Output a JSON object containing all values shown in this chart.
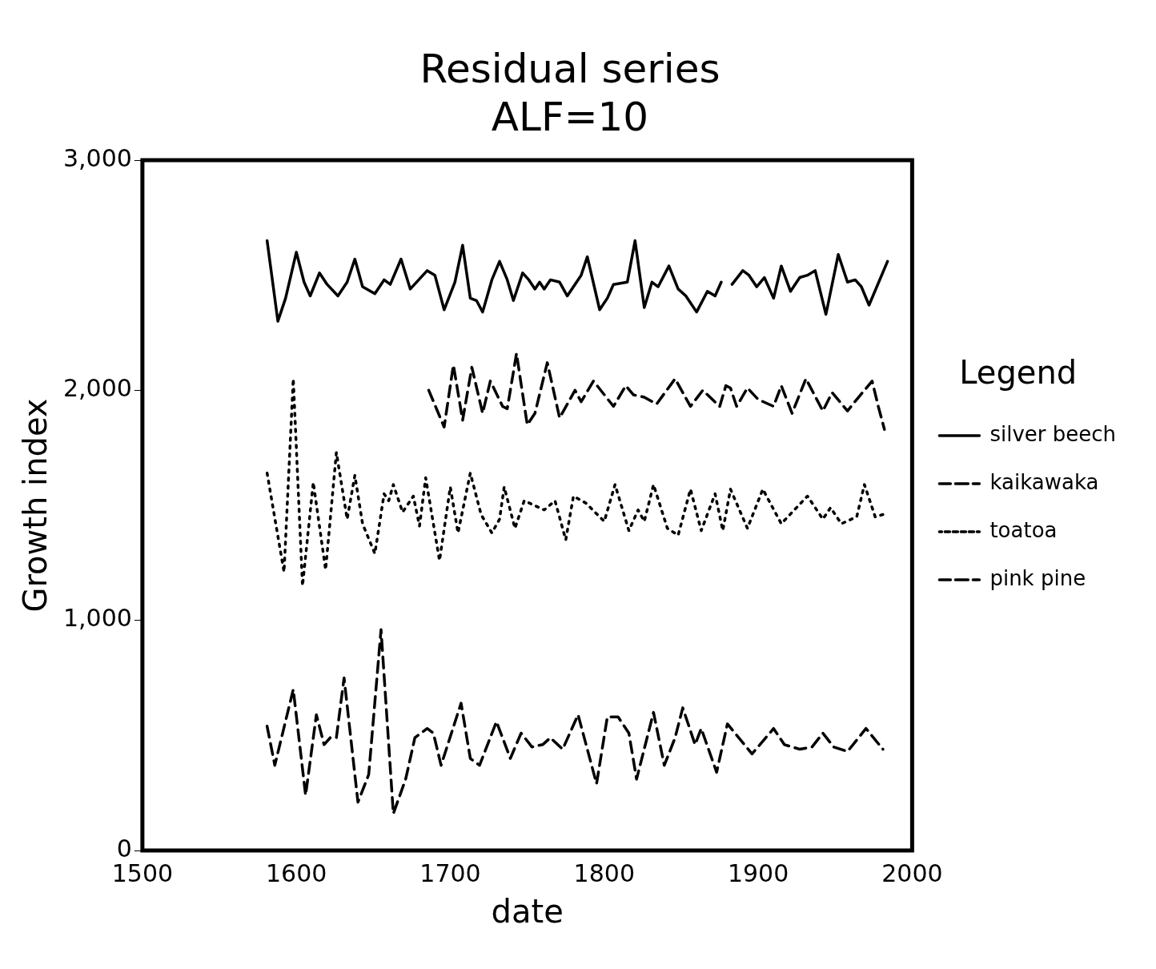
{
  "chart_data": {
    "type": "line",
    "title": "Residual series",
    "subtitle": "ALF=10",
    "xlabel": "date",
    "ylabel": "Growth index",
    "legend_title": "Legend",
    "legend": "right",
    "grid": false,
    "marker": "none",
    "xlim": [
      1500,
      2000
    ],
    "xticks": [
      1500,
      1600,
      1700,
      1800,
      1900,
      2000
    ],
    "ylim": [
      0,
      3000
    ],
    "yticks": [
      0,
      {
        "value": 1000,
        "label": "1,000"
      },
      {
        "value": 2000,
        "label": "2,000"
      },
      {
        "value": 3000,
        "label": "3,000"
      }
    ],
    "series": [
      {
        "name": "silver beech",
        "color": "#000000",
        "line_style": "solid",
        "x": [
          1581,
          1588,
          1593,
          1600,
          1605,
          1609,
          1615,
          1620,
          1627,
          1633,
          1638,
          1643,
          1651,
          1657,
          1661,
          1668,
          1674,
          1685,
          1690,
          1696,
          1703,
          1708,
          1713,
          1717,
          1721,
          1727,
          1732,
          1737,
          1741,
          1747,
          1751,
          1755,
          1758,
          1761,
          1765,
          1771,
          1776,
          1785,
          1789,
          1797,
          1802,
          1806,
          1815,
          1820,
          1826,
          1831,
          1835,
          1842,
          1848,
          1853,
          1860,
          1867,
          1872,
          1876,
          1879,
          1883,
          1890,
          1894,
          1899,
          1904,
          1910,
          1915,
          1921,
          1927,
          1932,
          1937,
          1944,
          1952,
          1958,
          1963,
          1967,
          1972,
          1984
        ],
        "values": [
          2650,
          2300,
          2400,
          2600,
          2470,
          2410,
          2510,
          2460,
          2410,
          2470,
          2570,
          2450,
          2420,
          2480,
          2460,
          2570,
          2440,
          2520,
          2500,
          2350,
          2470,
          2630,
          2400,
          2390,
          2340,
          2480,
          2560,
          2480,
          2390,
          2510,
          2480,
          2440,
          2470,
          2440,
          2480,
          2470,
          2410,
          2500,
          2580,
          2350,
          2400,
          2460,
          2470,
          2650,
          2360,
          2470,
          2450,
          2540,
          2440,
          2410,
          2340,
          2430,
          2410,
          2470,
          null,
          2460,
          2520,
          2500,
          2450,
          2490,
          2400,
          2540,
          2430,
          2490,
          2500,
          2520,
          2330,
          2590,
          2470,
          2480,
          2450,
          2370,
          2560
        ]
      },
      {
        "name": "kaikawaka",
        "color": "#000000",
        "line_style": "dashed",
        "x": [
          1686,
          1696,
          1702,
          1708,
          1714,
          1721,
          1726,
          1734,
          1737,
          1743,
          1750,
          1755,
          1763,
          1771,
          1781,
          1785,
          1793,
          1806,
          1814,
          1819,
          1826,
          1834,
          1846,
          1856,
          1864,
          1875,
          1879,
          1882,
          1886,
          1893,
          1900,
          1910,
          1915,
          1922,
          1931,
          1942,
          1948,
          1958,
          1964,
          1974,
          1978,
          1982
        ],
        "values": [
          2000,
          1840,
          2110,
          1870,
          2100,
          1900,
          2040,
          1930,
          1920,
          2160,
          1850,
          1900,
          2120,
          1880,
          2000,
          1950,
          2040,
          1930,
          2020,
          1980,
          1970,
          1940,
          2050,
          1930,
          2000,
          1930,
          2020,
          2010,
          1930,
          2010,
          1960,
          1930,
          2020,
          1900,
          2050,
          1910,
          1990,
          1910,
          1960,
          2040,
          1930,
          1830
        ]
      },
      {
        "name": "toatoa",
        "color": "#000000",
        "line_style": "dotted",
        "x": [
          1581,
          1592,
          1598,
          1604,
          1611,
          1619,
          1626,
          1633,
          1638,
          1643,
          1651,
          1657,
          1660,
          1663,
          1669,
          1676,
          1680,
          1684,
          1693,
          1700,
          1705,
          1713,
          1720,
          1727,
          1732,
          1735,
          1742,
          1748,
          1761,
          1768,
          1775,
          1780,
          1788,
          1800,
          1807,
          1816,
          1822,
          1826,
          1832,
          1841,
          1848,
          1856,
          1863,
          1872,
          1877,
          1882,
          1893,
          1903,
          1915,
          1932,
          1942,
          1947,
          1954,
          1964,
          1969,
          1976,
          1981
        ],
        "values": [
          1640,
          1210,
          2050,
          1150,
          1600,
          1220,
          1730,
          1440,
          1630,
          1420,
          1290,
          1550,
          1520,
          1590,
          1470,
          1540,
          1410,
          1620,
          1260,
          1580,
          1380,
          1640,
          1460,
          1380,
          1440,
          1580,
          1400,
          1520,
          1480,
          1520,
          1350,
          1540,
          1510,
          1430,
          1590,
          1390,
          1480,
          1430,
          1590,
          1400,
          1370,
          1570,
          1390,
          1550,
          1390,
          1570,
          1400,
          1570,
          1420,
          1540,
          1440,
          1490,
          1420,
          1450,
          1590,
          1450,
          1460
        ]
      },
      {
        "name": "pink pine",
        "color": "#000000",
        "line_style": "dashed",
        "x": [
          1581,
          1586,
          1598,
          1606,
          1613,
          1618,
          1622,
          1626,
          1631,
          1640,
          1647,
          1655,
          1663,
          1671,
          1677,
          1685,
          1689,
          1694,
          1707,
          1713,
          1719,
          1730,
          1739,
          1746,
          1753,
          1760,
          1765,
          1773,
          1783,
          1795,
          1802,
          1809,
          1816,
          1821,
          1832,
          1839,
          1846,
          1851,
          1859,
          1863,
          1873,
          1880,
          1896,
          1910,
          1917,
          1927,
          1935,
          1942,
          1949,
          1958,
          1970,
          1981
        ],
        "values": [
          540,
          370,
          700,
          240,
          590,
          460,
          490,
          490,
          750,
          210,
          330,
          960,
          160,
          310,
          490,
          530,
          510,
          370,
          640,
          400,
          370,
          560,
          400,
          510,
          450,
          460,
          490,
          440,
          590,
          290,
          580,
          580,
          510,
          310,
          600,
          370,
          490,
          620,
          460,
          530,
          340,
          550,
          420,
          530,
          460,
          440,
          450,
          510,
          450,
          430,
          530,
          440
        ]
      }
    ]
  }
}
